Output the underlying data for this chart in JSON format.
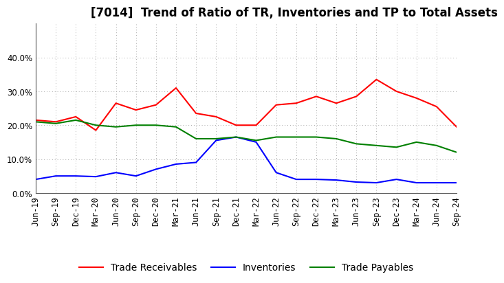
{
  "title": "[7014]  Trend of Ratio of TR, Inventories and TP to Total Assets",
  "labels": [
    "Jun-19",
    "Sep-19",
    "Dec-19",
    "Mar-20",
    "Jun-20",
    "Sep-20",
    "Dec-20",
    "Mar-21",
    "Jun-21",
    "Sep-21",
    "Dec-21",
    "Mar-22",
    "Jun-22",
    "Sep-22",
    "Dec-22",
    "Mar-23",
    "Jun-23",
    "Sep-23",
    "Dec-23",
    "Mar-24",
    "Jun-24",
    "Sep-24"
  ],
  "trade_receivables": [
    0.215,
    0.21,
    0.225,
    0.185,
    0.265,
    0.245,
    0.26,
    0.31,
    0.235,
    0.225,
    0.2,
    0.2,
    0.26,
    0.265,
    0.285,
    0.265,
    0.285,
    0.335,
    0.3,
    0.28,
    0.255,
    0.195
  ],
  "inventories": [
    0.04,
    0.05,
    0.05,
    0.048,
    0.06,
    0.05,
    0.07,
    0.085,
    0.09,
    0.155,
    0.165,
    0.15,
    0.06,
    0.04,
    0.04,
    0.038,
    0.032,
    0.03,
    0.04,
    0.03,
    0.03,
    0.03
  ],
  "trade_payables": [
    0.21,
    0.205,
    0.215,
    0.2,
    0.195,
    0.2,
    0.2,
    0.195,
    0.16,
    0.16,
    0.165,
    0.155,
    0.165,
    0.165,
    0.165,
    0.16,
    0.145,
    0.14,
    0.135,
    0.15,
    0.14,
    0.12
  ],
  "tr_color": "#ff0000",
  "inv_color": "#0000ff",
  "tp_color": "#008000",
  "ylim": [
    0.0,
    0.5
  ],
  "yticks": [
    0.0,
    0.1,
    0.2,
    0.3,
    0.4
  ],
  "background_color": "#ffffff",
  "plot_bg_color": "#ffffff",
  "grid_color": "#aaaaaa",
  "title_fontsize": 12,
  "tick_fontsize": 8.5,
  "legend_fontsize": 10
}
